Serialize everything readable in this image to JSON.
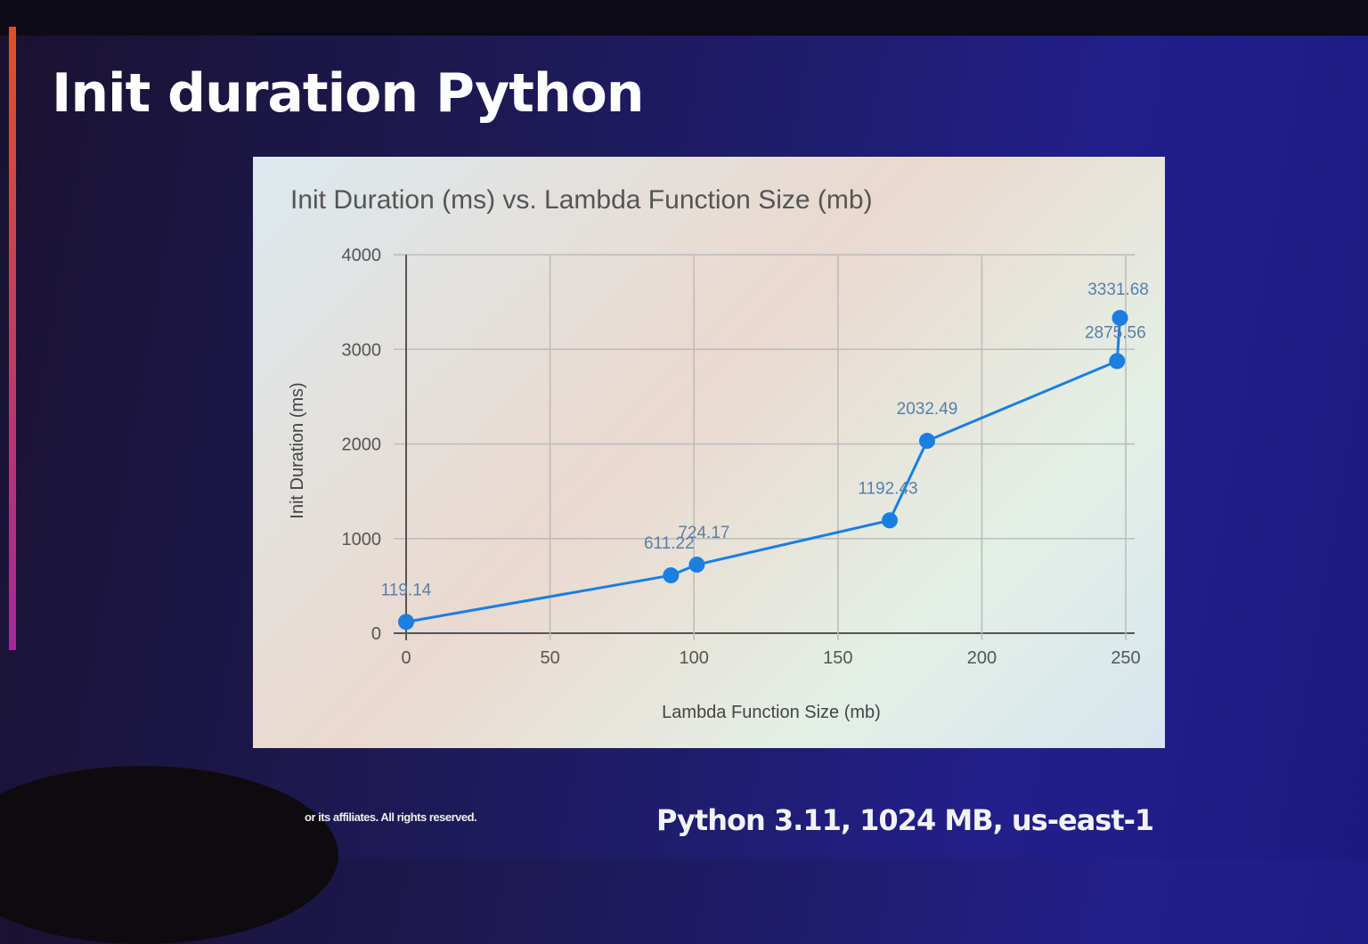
{
  "slide": {
    "title": "Init duration Python",
    "footer_copyright": "or its affiliates. All rights reserved.",
    "footer_note": "Python 3.11, 1024 MB, us-east-1"
  },
  "chart_data": {
    "type": "line",
    "title": "Init Duration (ms) vs. Lambda Function Size (mb)",
    "xlabel": "Lambda Function Size (mb)",
    "ylabel": "Init Duration (ms)",
    "xlim": [
      0,
      250
    ],
    "ylim": [
      0,
      4000
    ],
    "xticks": [
      0,
      50,
      100,
      150,
      200,
      250
    ],
    "yticks": [
      0,
      1000,
      2000,
      3000,
      4000
    ],
    "grid": true,
    "series": [
      {
        "color": "#1a7fe0",
        "x": [
          0,
          92,
          101,
          168,
          181,
          247,
          248
        ],
        "y": [
          119.14,
          611.22,
          724.17,
          1192.43,
          2032.49,
          2875.56,
          3331.68
        ],
        "labels": [
          "119.14",
          "611.22",
          "724.17",
          "1192.43",
          "2032.49",
          "2875.56",
          "3331.68"
        ]
      }
    ]
  }
}
